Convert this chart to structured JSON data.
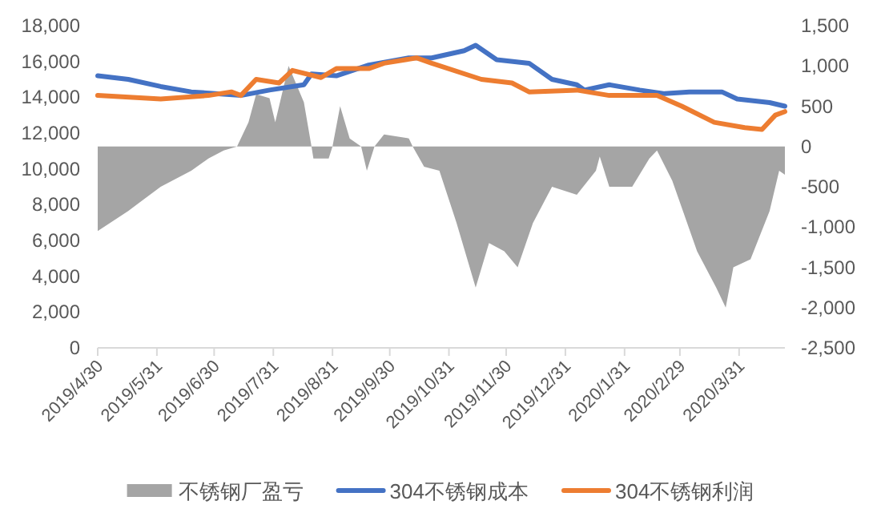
{
  "chart_data": {
    "type": "line",
    "xlim": [
      "2019-04-30",
      "2020-04-24"
    ],
    "xticks": [
      {
        "value": "2019-04-30",
        "label": "2019/4/30"
      },
      {
        "value": "2019-05-31",
        "label": "2019/5/31"
      },
      {
        "value": "2019-06-30",
        "label": "2019/6/30"
      },
      {
        "value": "2019-07-31",
        "label": "2019/7/31"
      },
      {
        "value": "2019-08-31",
        "label": "2019/8/31"
      },
      {
        "value": "2019-09-30",
        "label": "2019/9/30"
      },
      {
        "value": "2019-10-31",
        "label": "2019/10/31"
      },
      {
        "value": "2019-11-30",
        "label": "2019/11/30"
      },
      {
        "value": "2019-12-31",
        "label": "2019/12/31"
      },
      {
        "value": "2020-01-31",
        "label": "2020/1/31"
      },
      {
        "value": "2020-02-29",
        "label": "2020/2/29"
      },
      {
        "value": "2020-03-31",
        "label": "2020/3/31"
      }
    ],
    "ylim": [
      0,
      18000
    ],
    "yticks": [
      0,
      {
        "value": 2000,
        "label": "2,000"
      },
      {
        "value": 4000,
        "label": "4,000"
      },
      {
        "value": 6000,
        "label": "6,000"
      },
      {
        "value": 8000,
        "label": "8,000"
      },
      {
        "value": 10000,
        "label": "10,000"
      },
      {
        "value": 12000,
        "label": "12,000"
      },
      {
        "value": 14000,
        "label": "14,000"
      },
      {
        "value": 16000,
        "label": "16,000"
      },
      {
        "value": 18000,
        "label": "18,000"
      }
    ],
    "y2lim": [
      -2500,
      1500
    ],
    "y2ticks": [
      {
        "value": -2500,
        "label": "-2,500"
      },
      {
        "value": -2000,
        "label": "-2,000"
      },
      {
        "value": -1500,
        "label": "-1,500"
      },
      {
        "value": -1000,
        "label": "-1,000"
      },
      -500,
      0,
      500,
      {
        "value": 1000,
        "label": "1,000"
      },
      {
        "value": 1500,
        "label": "1,500"
      }
    ],
    "legend": "bottom",
    "series": [
      {
        "name": "不锈钢厂盈亏",
        "type": "area",
        "axis": "y2",
        "color": "#a5a5a5",
        "x": [
          "2019-04-30",
          "2019-05-16",
          "2019-06-02",
          "2019-06-18",
          "2019-06-27",
          "2019-07-05",
          "2019-07-12",
          "2019-07-18",
          "2019-07-22",
          "2019-07-29",
          "2019-08-01",
          "2019-08-08",
          "2019-08-16",
          "2019-08-20",
          "2019-08-21",
          "2019-08-29",
          "2019-08-31",
          "2019-09-04",
          "2019-09-09",
          "2019-09-15",
          "2019-09-18",
          "2019-09-22",
          "2019-09-27",
          "2019-10-10",
          "2019-10-12",
          "2019-10-18",
          "2019-10-26",
          "2019-11-04",
          "2019-11-14",
          "2019-11-21",
          "2019-11-29",
          "2019-12-06",
          "2019-12-14",
          "2019-12-24",
          "2020-01-06",
          "2020-01-16",
          "2020-01-18",
          "2020-01-23",
          "2020-02-04",
          "2020-02-13",
          "2020-02-17",
          "2020-02-25",
          "2020-03-09",
          "2020-03-19",
          "2020-03-24",
          "2020-03-28",
          "2020-04-06",
          "2020-04-16",
          "2020-04-21",
          "2020-04-24"
        ],
        "values": [
          -1050,
          -800,
          -500,
          -300,
          -150,
          -50,
          0,
          300,
          650,
          600,
          300,
          1000,
          550,
          0,
          -150,
          -150,
          0,
          500,
          100,
          0,
          -300,
          0,
          150,
          100,
          0,
          -250,
          -300,
          -950,
          -1750,
          -1200,
          -1300,
          -1500,
          -950,
          -500,
          -600,
          -300,
          -125,
          -500,
          -500,
          -150,
          -50,
          -425,
          -1300,
          -1750,
          -2000,
          -1500,
          -1400,
          -800,
          -300,
          -350
        ]
      },
      {
        "name": "304不锈钢成本",
        "color": "#4472c4",
        "x": [
          "2019-04-30",
          "2019-05-16",
          "2019-06-02",
          "2019-06-18",
          "2019-07-14",
          "2019-07-29",
          "2019-08-16",
          "2019-08-20",
          "2019-09-02",
          "2019-09-19",
          "2019-10-10",
          "2019-10-22",
          "2019-11-08",
          "2019-11-14",
          "2019-11-25",
          "2019-12-12",
          "2019-12-24",
          "2020-01-06",
          "2020-01-10",
          "2020-01-23",
          "2020-02-08",
          "2020-02-21",
          "2020-03-05",
          "2020-03-22",
          "2020-03-30",
          "2020-04-16",
          "2020-04-24"
        ],
        "values": [
          15200,
          15000,
          14600,
          14300,
          14100,
          14400,
          14700,
          15300,
          15200,
          15800,
          16200,
          16200,
          16600,
          16900,
          16100,
          15900,
          15000,
          14700,
          14400,
          14700,
          14400,
          14200,
          14300,
          14300,
          13900,
          13700,
          13500
        ]
      },
      {
        "name": "304不锈钢利润",
        "color": "#ed7d31",
        "x": [
          "2019-04-30",
          "2019-06-02",
          "2019-06-27",
          "2019-07-09",
          "2019-07-14",
          "2019-07-22",
          "2019-08-03",
          "2019-08-10",
          "2019-08-25",
          "2019-09-02",
          "2019-09-19",
          "2019-09-27",
          "2019-10-14",
          "2019-10-22",
          "2019-11-17",
          "2019-12-03",
          "2019-12-12",
          "2020-01-06",
          "2020-01-23",
          "2020-02-17",
          "2020-03-01",
          "2020-03-18",
          "2020-04-03",
          "2020-04-12",
          "2020-04-19",
          "2020-04-24"
        ],
        "values": [
          14100,
          13900,
          14100,
          14300,
          14100,
          15000,
          14800,
          15500,
          15100,
          15600,
          15600,
          15900,
          16200,
          15900,
          15000,
          14800,
          14300,
          14400,
          14100,
          14100,
          13500,
          12600,
          12300,
          12200,
          13000,
          13200
        ]
      }
    ]
  }
}
